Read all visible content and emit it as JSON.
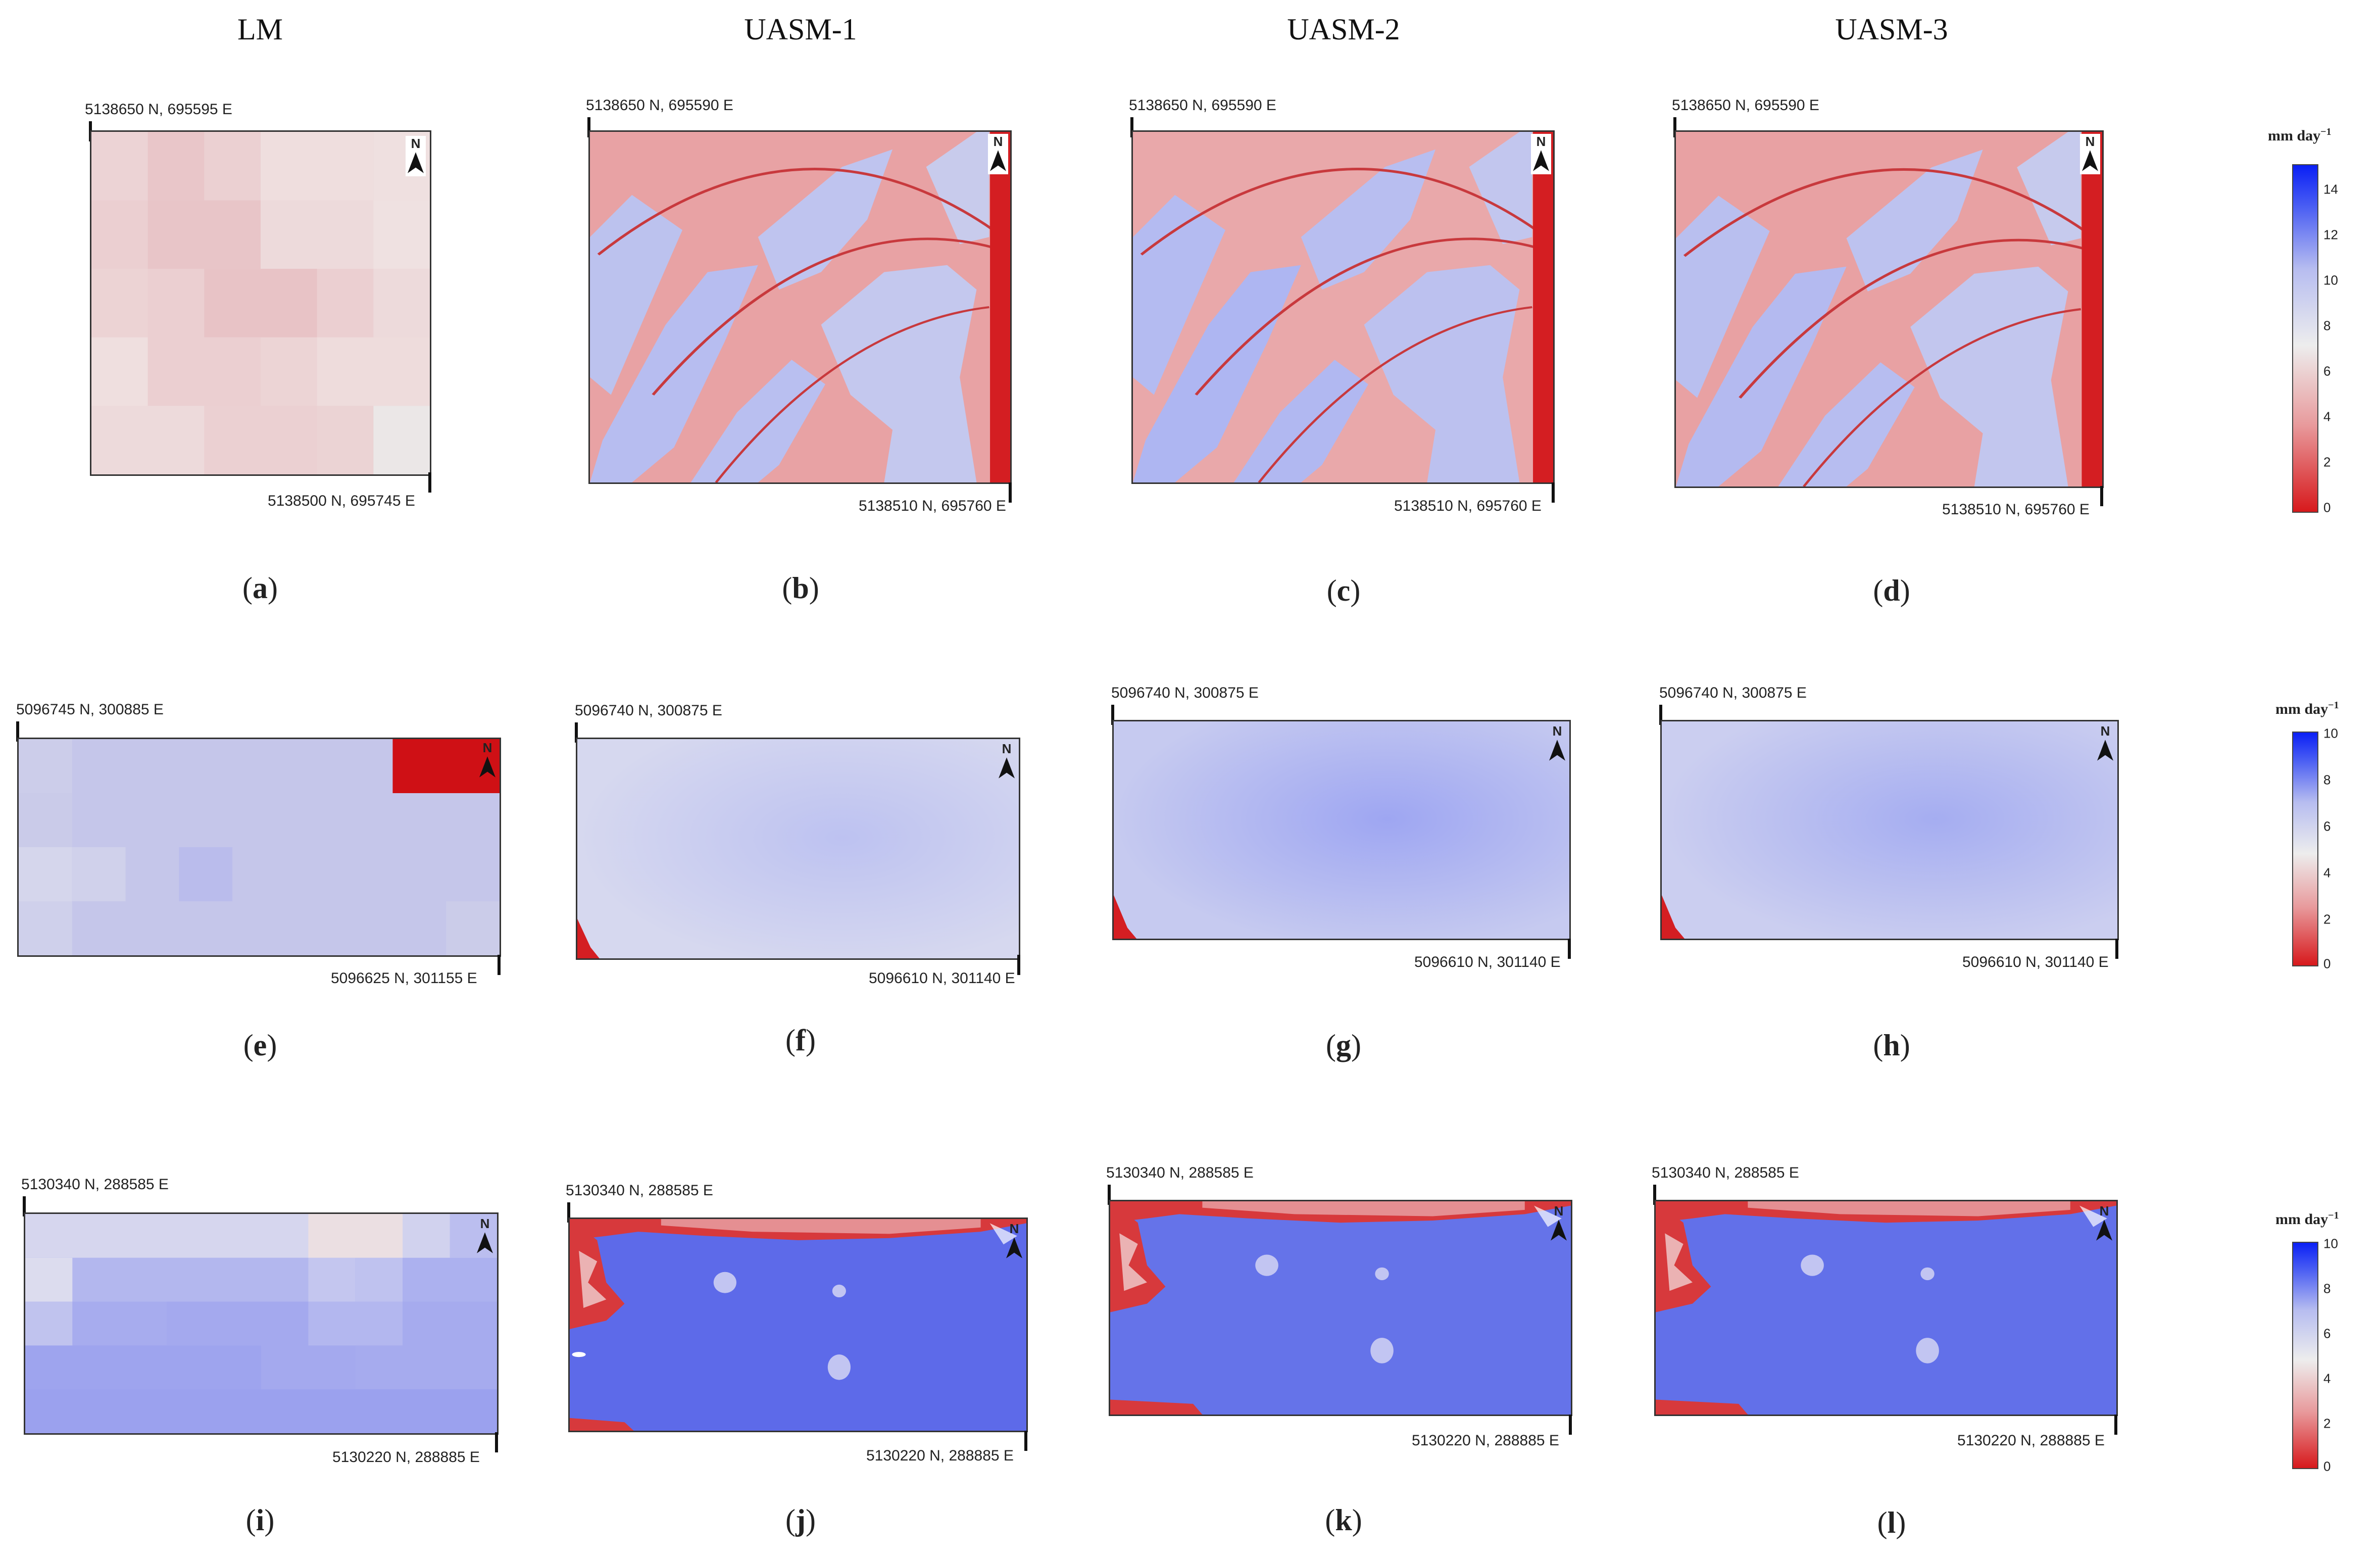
{
  "column_headers": [
    "LM",
    "UASM-1",
    "UASM-2",
    "UASM-3"
  ],
  "north_label": "N",
  "colorbars": [
    {
      "title": "mm day",
      "superscript": "−1",
      "ticks": [
        "14",
        "12",
        "10",
        "8",
        "6",
        "4",
        "2",
        "0"
      ]
    },
    {
      "title": "mm day",
      "superscript": "−1",
      "ticks": [
        "10",
        "8",
        "6",
        "4",
        "2",
        "0"
      ]
    },
    {
      "title": "mm day",
      "superscript": "−1",
      "ticks": [
        "10",
        "8",
        "6",
        "4",
        "2",
        "0"
      ]
    }
  ],
  "panels": [
    {
      "label": "a",
      "top_coord": "5138650 N, 695595 E",
      "bottom_coord": "5138500 N, 695745 E"
    },
    {
      "label": "b",
      "top_coord": "5138650 N, 695590 E",
      "bottom_coord": "5138510 N, 695760 E"
    },
    {
      "label": "c",
      "top_coord": "5138650 N, 695590 E",
      "bottom_coord": "5138510 N, 695760 E"
    },
    {
      "label": "d",
      "top_coord": "5138650 N, 695590 E",
      "bottom_coord": "5138510 N, 695760 E"
    },
    {
      "label": "e",
      "top_coord": "5096745 N, 300885 E",
      "bottom_coord": "5096625 N, 301155 E"
    },
    {
      "label": "f",
      "top_coord": "5096740 N, 300875 E",
      "bottom_coord": "5096610 N, 301140 E"
    },
    {
      "label": "g",
      "top_coord": "5096740 N, 300875 E",
      "bottom_coord": "5096610 N, 301140 E"
    },
    {
      "label": "h",
      "top_coord": "5096740 N, 300875 E",
      "bottom_coord": "5096610 N, 301140 E"
    },
    {
      "label": "i",
      "top_coord": "5130340 N, 288585 E",
      "bottom_coord": "5130220 N, 288885 E"
    },
    {
      "label": "j",
      "top_coord": "5130340 N, 288585 E",
      "bottom_coord": "5130220 N, 288885 E"
    },
    {
      "label": "k",
      "top_coord": "5130340 N, 288585 E",
      "bottom_coord": "5130220 N, 288885 E"
    },
    {
      "label": "l",
      "top_coord": "5130340 N, 288585 E",
      "bottom_coord": "5130220 N, 288885 E"
    }
  ]
}
